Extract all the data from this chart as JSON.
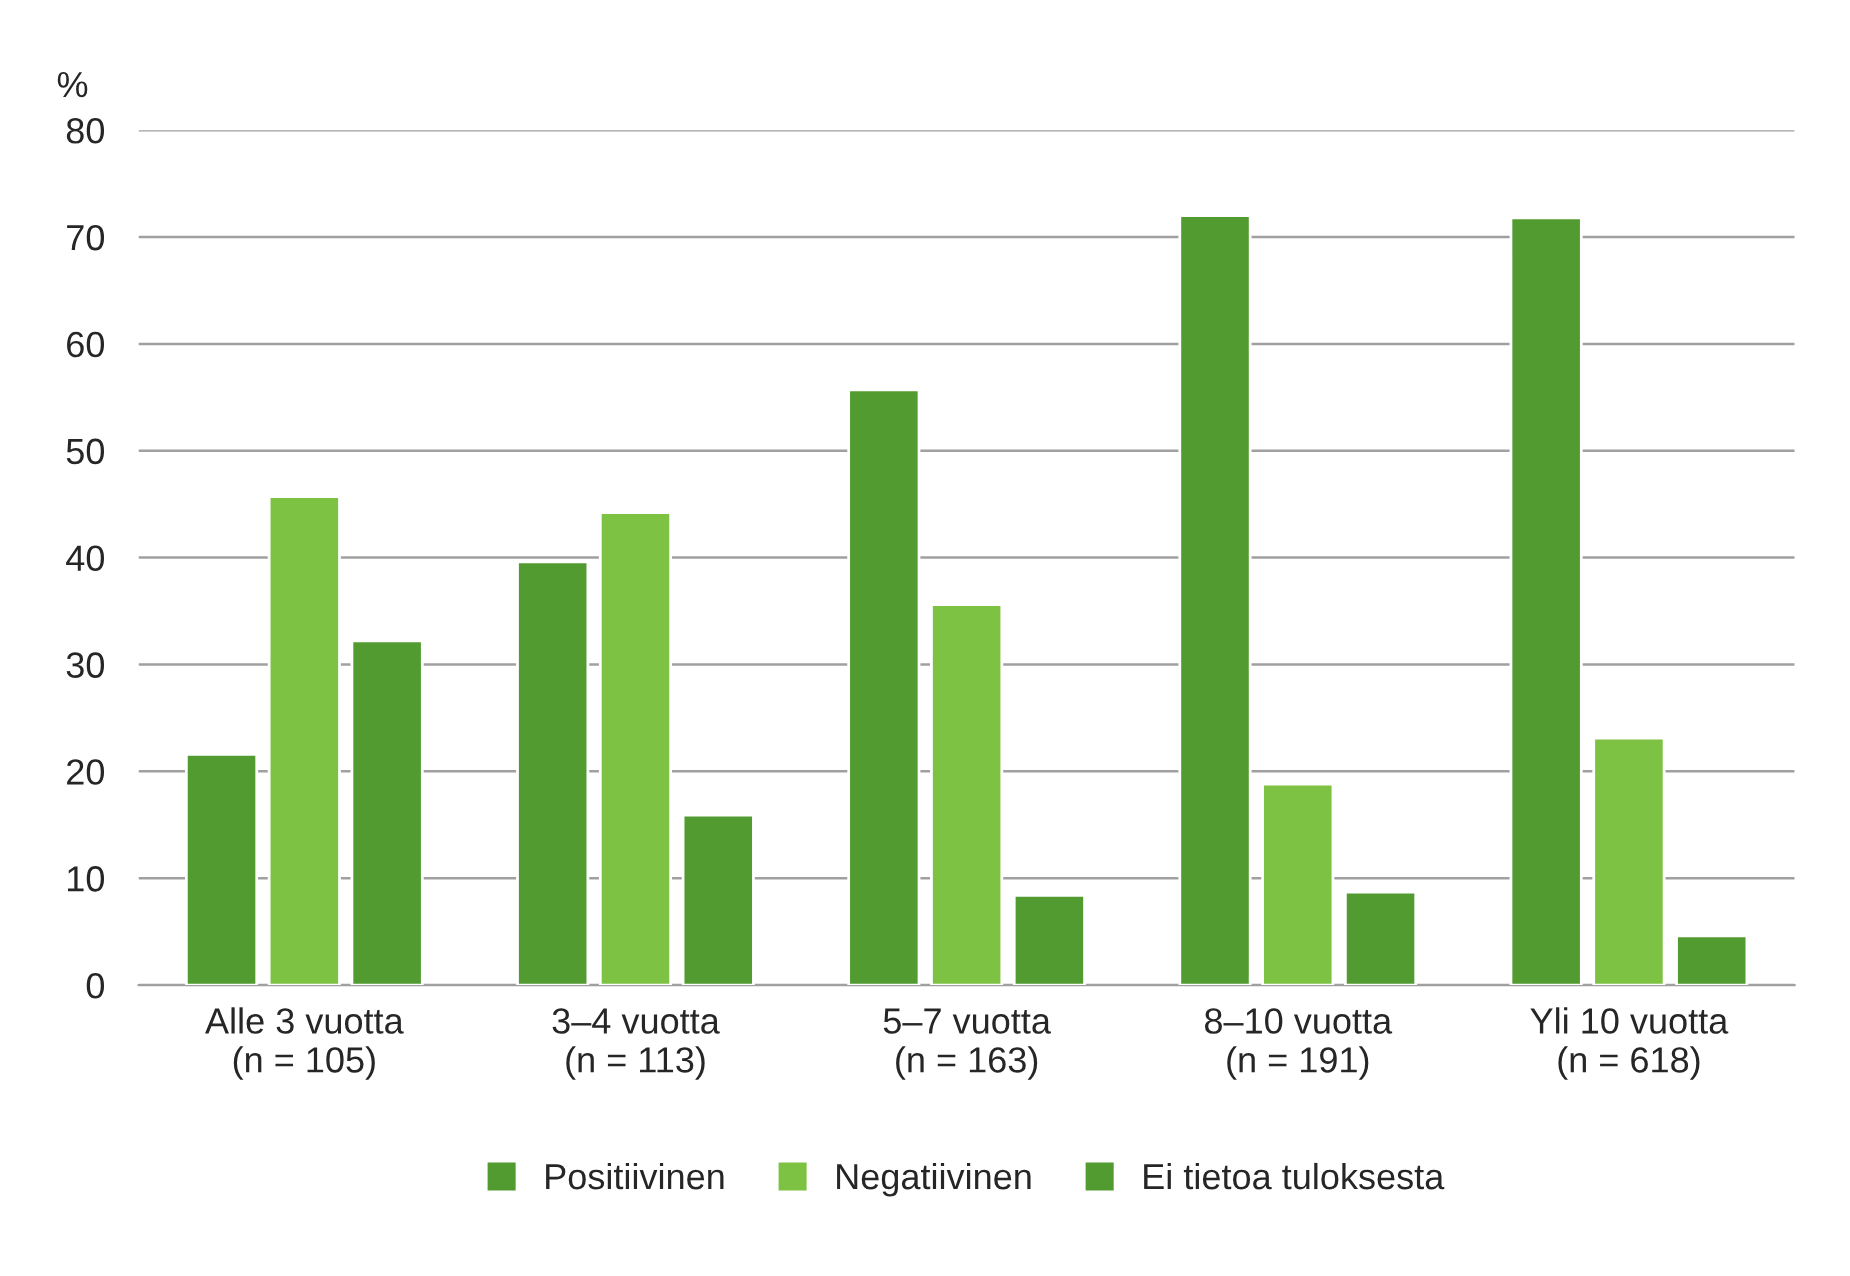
{
  "chart_data": {
    "type": "bar",
    "ylabel": "%",
    "categories": [
      "Alle 3 vuotta\n(n = 105)",
      "3–4 vuotta\n(n = 113)",
      "5–7 vuotta\n(n = 163)",
      "8–10 vuotta\n(n = 191)",
      "Yli 10 vuotta\n(n = 618)"
    ],
    "series": [
      {
        "name": "Positiivinen",
        "color": "#519b31",
        "values": [
          21.6,
          39.6,
          55.7,
          72.0,
          71.8
        ]
      },
      {
        "name": "Negatiivinen",
        "color": "#7dc242",
        "values": [
          45.7,
          44.2,
          35.6,
          18.8,
          23.1
        ]
      },
      {
        "name": "Ei tietoa tuloksesta",
        "color": "#519b31",
        "values": [
          32.2,
          15.9,
          8.4,
          8.7,
          4.6
        ]
      }
    ],
    "ylim": [
      0,
      80
    ],
    "yticks": [
      0,
      10,
      20,
      30,
      40,
      50,
      60,
      70,
      80
    ],
    "grid": "y",
    "legend": "bottom"
  }
}
